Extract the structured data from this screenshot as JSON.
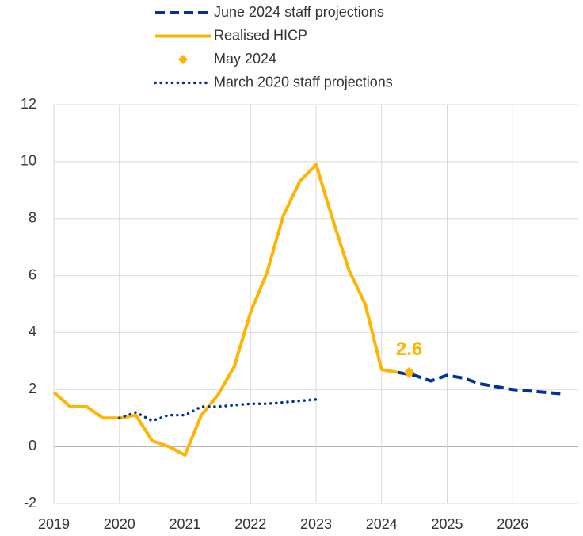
{
  "chart_data": {
    "type": "line",
    "xlim": [
      2019,
      2027
    ],
    "xticks": [
      2019,
      2020,
      2021,
      2022,
      2023,
      2024,
      2025,
      2026
    ],
    "ylim": [
      -2,
      12
    ],
    "yticks": [
      -2,
      0,
      2,
      4,
      6,
      8,
      10,
      12
    ],
    "grid": true,
    "series": [
      {
        "name": "June 2024 staff projections",
        "color": "#003299",
        "style": "dashed",
        "x": [
          2024.25,
          2024.5,
          2024.75,
          2025.0,
          2025.25,
          2025.5,
          2025.75,
          2026.0,
          2026.25,
          2026.5,
          2026.75
        ],
        "values": [
          2.6,
          2.5,
          2.3,
          2.5,
          2.4,
          2.2,
          2.1,
          2.0,
          1.95,
          1.9,
          1.85
        ]
      },
      {
        "name": "Realised HICP",
        "color": "#ffb400",
        "style": "solid",
        "x": [
          2019.0,
          2019.25,
          2019.5,
          2019.75,
          2020.0,
          2020.25,
          2020.5,
          2020.75,
          2021.0,
          2021.25,
          2021.5,
          2021.75,
          2022.0,
          2022.25,
          2022.5,
          2022.75,
          2023.0,
          2023.25,
          2023.5,
          2023.75,
          2024.0,
          2024.25
        ],
        "values": [
          1.9,
          1.4,
          1.4,
          1.0,
          1.0,
          1.1,
          0.2,
          0.0,
          -0.3,
          1.1,
          1.8,
          2.8,
          4.7,
          6.1,
          8.1,
          9.3,
          9.9,
          8.0,
          6.2,
          5.0,
          2.7,
          2.6
        ]
      },
      {
        "name": "May 2024",
        "color": "#ffb400",
        "style": "marker",
        "x": [
          2024.42
        ],
        "values": [
          2.6
        ]
      },
      {
        "name": "March 2020 staff projections",
        "color": "#003299",
        "style": "dotted",
        "x": [
          2020.0,
          2020.25,
          2020.5,
          2020.75,
          2021.0,
          2021.25,
          2021.5,
          2021.75,
          2022.0,
          2022.25,
          2022.5,
          2022.75,
          2023.0
        ],
        "values": [
          1.0,
          1.2,
          0.9,
          1.1,
          1.1,
          1.4,
          1.4,
          1.45,
          1.5,
          1.5,
          1.55,
          1.6,
          1.65
        ]
      }
    ]
  }
}
